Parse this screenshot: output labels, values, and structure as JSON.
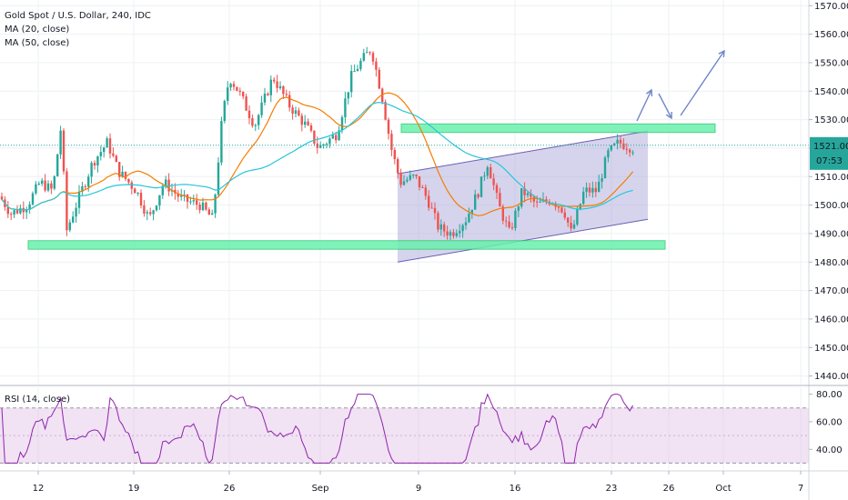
{
  "header": {
    "symbol_line": "Gold Spot / U.S. Dollar, 240, IDC",
    "ma20_label": "MA (20, close)",
    "ma50_label": "MA (50, close)",
    "rsi_label": "RSI (14, close)"
  },
  "price_badge": {
    "price": "1521.00",
    "countdown": "07:53"
  },
  "colors": {
    "up_candle": "#26a69a",
    "down_candle": "#ef5350",
    "ma20": "#f57c00",
    "ma50": "#26c6da",
    "rsi_line": "#8e24aa",
    "rsi_band": "#e1bee7",
    "channel_fill": "#b3b0dc",
    "channel_line": "#6a5fb5",
    "zone_fill": "#69f0ae",
    "arrow": "#6f86c8",
    "price_badge": "#26a69a"
  },
  "chart_data": [
    {
      "type": "candlestick",
      "title": "Gold Spot / U.S. Dollar, 240, IDC",
      "x_ticks": [
        "12",
        "19",
        "26",
        "Sep",
        "9",
        "16",
        "23",
        "26",
        "Oct",
        "7"
      ],
      "y_ticks": [
        "1570.00",
        "1560.00",
        "1550.00",
        "1540.00",
        "1530.00",
        "1520.00",
        "1510.00",
        "1500.00",
        "1490.00",
        "1480.00",
        "1470.00",
        "1460.00",
        "1450.00",
        "1440.00"
      ],
      "ylim": [
        1437,
        1572
      ],
      "last_price": 1521,
      "series": [
        {
          "name": "MA (20, close)"
        },
        {
          "name": "MA (50, close)"
        }
      ],
      "channel": {
        "start": "Sep 7",
        "end": "Sep 24",
        "lower": [
          1480,
          1495
        ],
        "upper": [
          1511,
          1526
        ]
      },
      "resistance_zone": [
        1525.5,
        1528.5
      ],
      "support_zone": [
        1484.5,
        1487.5
      ],
      "grid": true
    },
    {
      "type": "line",
      "title": "RSI (14, close)",
      "y_ticks": [
        "80.00",
        "60.00",
        "40.00"
      ],
      "ylim": [
        25,
        85
      ],
      "bands": [
        30,
        70
      ],
      "grid": true
    }
  ]
}
